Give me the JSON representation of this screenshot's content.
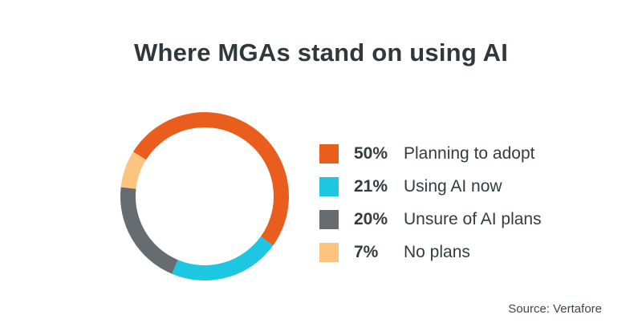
{
  "chart_data": {
    "type": "pie",
    "title": "Where MGAs stand on using AI",
    "legend_position": "right",
    "slices": [
      {
        "label": "Planning to adopt",
        "value": 50,
        "value_label": "50%",
        "color": "#e95e1c"
      },
      {
        "label": "Using AI now",
        "value": 21,
        "value_label": "21%",
        "color": "#1dc7e2"
      },
      {
        "label": "Unsure of AI plans",
        "value": 20,
        "value_label": "20%",
        "color": "#666c70"
      },
      {
        "label": "No plans",
        "value": 7,
        "value_label": "7%",
        "color": "#fcc47f"
      }
    ],
    "source": "Source: Vertafore"
  }
}
